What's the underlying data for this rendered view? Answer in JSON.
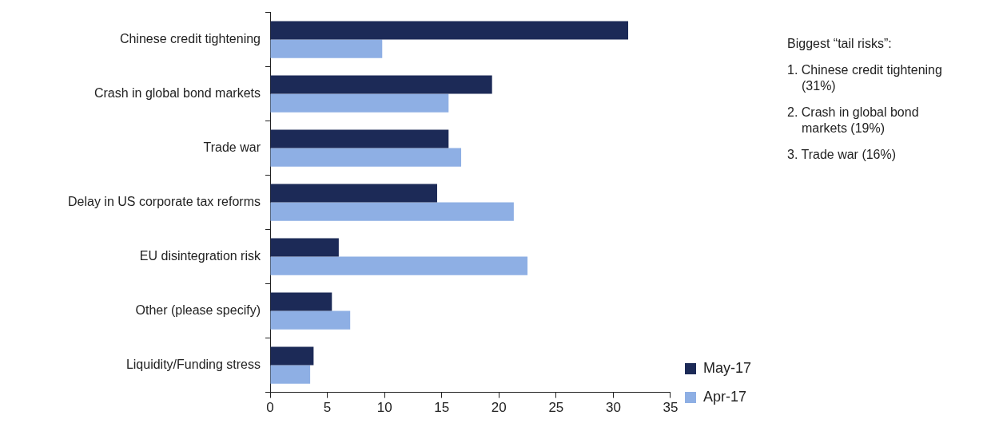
{
  "chart_data": {
    "type": "bar",
    "orientation": "horizontal",
    "categories": [
      "Chinese credit tightening",
      "Crash in global bond markets",
      "Trade war",
      "Delay in US corporate tax reforms",
      "EU disintegration risk",
      "Other (please specify)",
      "Liquidity/Funding stress"
    ],
    "series": [
      {
        "name": "May-17",
        "color": "#1c2a57",
        "values": [
          31.3,
          19.4,
          15.6,
          14.6,
          6.0,
          5.4,
          3.8
        ]
      },
      {
        "name": "Apr-17",
        "color": "#8eafe4",
        "values": [
          9.8,
          15.6,
          16.7,
          21.3,
          22.5,
          7.0,
          3.5
        ]
      }
    ],
    "xlim": [
      0,
      35
    ],
    "xticks": [
      0,
      5,
      10,
      15,
      20,
      25,
      30,
      35
    ],
    "grid": false,
    "legend": "bottom right",
    "annotations": [
      "Biggest “tail risks”:",
      "1. Chinese credit tightening (31%)",
      "2. Crash in global bond markets (19%)",
      "3. Trade war (16%)"
    ]
  }
}
